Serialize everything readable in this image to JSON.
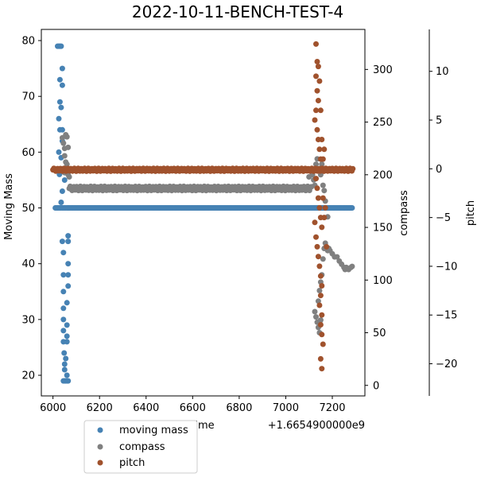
{
  "chart_data": {
    "type": "scatter",
    "title": "2022-10-11-BENCH-TEST-4",
    "xlabel": "time",
    "x_offset_label": "+1.6654900000e9",
    "xlim": [
      5950,
      7340
    ],
    "x_ticks": [
      6000,
      6200,
      6400,
      6600,
      6800,
      7000,
      7200
    ],
    "legend": {
      "placement": "below-left",
      "entries": [
        "moving mass",
        "compass",
        "pitch"
      ]
    },
    "axes": [
      {
        "id": "moving_mass",
        "label": "Moving Mass",
        "side": "left",
        "ylim": [
          16.3,
          82
        ],
        "ticks": [
          20,
          30,
          40,
          50,
          60,
          70,
          80
        ]
      },
      {
        "id": "compass",
        "label": "compass",
        "side": "right",
        "ylim": [
          -10,
          338
        ],
        "ticks": [
          0,
          50,
          100,
          150,
          200,
          250,
          300
        ]
      },
      {
        "id": "pitch",
        "label": "pitch",
        "side": "right-outer",
        "ylim": [
          -23.3,
          14.3
        ],
        "ticks": [
          10,
          5,
          0,
          -5,
          -10,
          -15,
          -20
        ]
      }
    ],
    "series": [
      {
        "name": "moving mass",
        "color": "#4682b4",
        "axis": "moving_mass",
        "points": [
          [
            6010,
            50
          ],
          [
            6015,
            50
          ],
          [
            6020,
            50
          ],
          [
            6025,
            50
          ],
          [
            6030,
            50
          ],
          [
            6035,
            50
          ],
          [
            6040,
            50
          ],
          [
            6045,
            50
          ],
          [
            6050,
            50
          ],
          [
            6055,
            50
          ],
          [
            6060,
            50
          ],
          [
            6065,
            50
          ],
          [
            6020,
            79
          ],
          [
            6025,
            79
          ],
          [
            6030,
            79
          ],
          [
            6035,
            79
          ],
          [
            6040,
            75
          ],
          [
            6040,
            72
          ],
          [
            6030,
            73
          ],
          [
            6030,
            69
          ],
          [
            6035,
            68
          ],
          [
            6025,
            66
          ],
          [
            6040,
            64
          ],
          [
            6030,
            64
          ],
          [
            6040,
            62
          ],
          [
            6025,
            60
          ],
          [
            6035,
            59
          ],
          [
            6040,
            57
          ],
          [
            6028,
            56
          ],
          [
            6050,
            55
          ],
          [
            6040,
            53
          ],
          [
            6035,
            51
          ],
          [
            6065,
            45
          ],
          [
            6040,
            44
          ],
          [
            6065,
            44
          ],
          [
            6045,
            42
          ],
          [
            6065,
            40
          ],
          [
            6045,
            38
          ],
          [
            6065,
            38
          ],
          [
            6045,
            35
          ],
          [
            6065,
            36
          ],
          [
            6045,
            32
          ],
          [
            6060,
            33
          ],
          [
            6045,
            30
          ],
          [
            6060,
            29
          ],
          [
            6045,
            28
          ],
          [
            6060,
            27
          ],
          [
            6045,
            26
          ],
          [
            6060,
            26
          ],
          [
            6048,
            24
          ],
          [
            6055,
            23
          ],
          [
            6050,
            22
          ],
          [
            6050,
            21
          ],
          [
            6060,
            20
          ],
          [
            6045,
            19
          ],
          [
            6050,
            19
          ],
          [
            6055,
            19
          ],
          [
            6060,
            19
          ],
          [
            6065,
            19
          ]
        ],
        "segment": {
          "x_start": 6065,
          "x_end": 7285,
          "y": 50
        }
      },
      {
        "name": "compass",
        "color": "#808080",
        "axis": "compass",
        "points": [
          [
            6040,
            235
          ],
          [
            6045,
            230
          ],
          [
            6050,
            225
          ],
          [
            6055,
            238
          ],
          [
            6060,
            236
          ],
          [
            6065,
            226
          ],
          [
            6050,
            218
          ],
          [
            6055,
            212
          ],
          [
            6060,
            210
          ],
          [
            6055,
            205
          ],
          [
            6050,
            202
          ],
          [
            6065,
            200
          ],
          [
            6070,
            198
          ],
          [
            7100,
            198
          ],
          [
            7110,
            205
          ],
          [
            7115,
            200
          ],
          [
            7120,
            195
          ],
          [
            7125,
            190
          ],
          [
            7130,
            210
          ],
          [
            7135,
            215
          ],
          [
            7140,
            205
          ],
          [
            7150,
            200
          ],
          [
            7155,
            210
          ],
          [
            7160,
            190
          ],
          [
            7165,
            185
          ],
          [
            7170,
            175
          ],
          [
            7180,
            160
          ],
          [
            7125,
            70
          ],
          [
            7130,
            65
          ],
          [
            7135,
            60
          ],
          [
            7140,
            55
          ],
          [
            7145,
            50
          ],
          [
            7150,
            62
          ],
          [
            7140,
            80
          ],
          [
            7145,
            90
          ],
          [
            7150,
            98
          ],
          [
            7155,
            105
          ],
          [
            7160,
            120
          ],
          [
            7165,
            130
          ],
          [
            7170,
            135
          ],
          [
            7175,
            130
          ],
          [
            7180,
            128
          ],
          [
            7185,
            130
          ],
          [
            7190,
            128
          ],
          [
            7200,
            125
          ],
          [
            7210,
            122
          ],
          [
            7220,
            122
          ],
          [
            7230,
            118
          ],
          [
            7240,
            115
          ],
          [
            7250,
            112
          ],
          [
            7255,
            110
          ],
          [
            7260,
            112
          ],
          [
            7270,
            110
          ],
          [
            7280,
            112
          ],
          [
            7285,
            113
          ]
        ],
        "segment": {
          "x_start": 6070,
          "x_end": 7110,
          "y": 187,
          "jitter": 2
        }
      },
      {
        "name": "pitch",
        "color": "#a0522d",
        "axis": "pitch",
        "points": [
          [
            7130,
            12.8
          ],
          [
            7135,
            11
          ],
          [
            7140,
            10.5
          ],
          [
            7130,
            9.5
          ],
          [
            7135,
            8
          ],
          [
            7140,
            7
          ],
          [
            7130,
            6
          ],
          [
            7125,
            5
          ],
          [
            7135,
            4
          ],
          [
            7140,
            3
          ],
          [
            7145,
            2
          ],
          [
            7150,
            1
          ],
          [
            7130,
            -1
          ],
          [
            7135,
            -2
          ],
          [
            7140,
            -3
          ],
          [
            7145,
            -4
          ],
          [
            7150,
            -5
          ],
          [
            7155,
            -6
          ],
          [
            7125,
            -5.5
          ],
          [
            7130,
            -7
          ],
          [
            7135,
            -8
          ],
          [
            7140,
            -9
          ],
          [
            7145,
            -10
          ],
          [
            7150,
            -11
          ],
          [
            7155,
            -12
          ],
          [
            7150,
            -13
          ],
          [
            7145,
            -14
          ],
          [
            7155,
            -15
          ],
          [
            7150,
            -16
          ],
          [
            7155,
            -17
          ],
          [
            7160,
            -18
          ],
          [
            7150,
            -19.5
          ],
          [
            7155,
            -20.5
          ],
          [
            7160,
            -3
          ],
          [
            7165,
            -5
          ],
          [
            7170,
            -4
          ],
          [
            7175,
            -8
          ],
          [
            7160,
            1
          ],
          [
            7165,
            2
          ],
          [
            7155,
            3
          ],
          [
            7150,
            6
          ],
          [
            7145,
            9
          ]
        ],
        "segment": {
          "x_start": 6000,
          "x_end": 7290,
          "y": -0.1,
          "jitter": 0.15
        }
      }
    ]
  }
}
